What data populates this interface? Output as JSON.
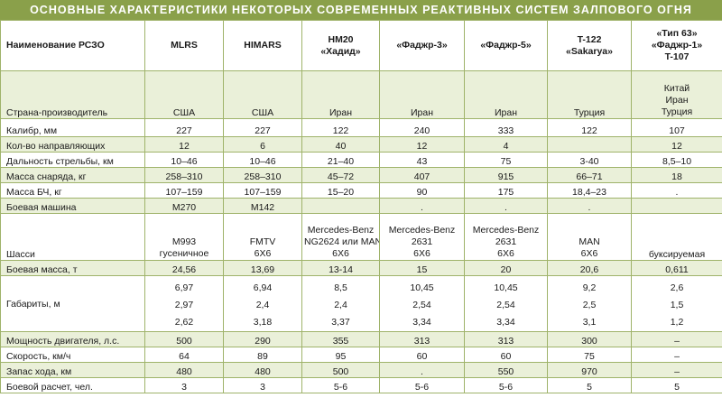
{
  "title": "ОСНОВНЫЕ ХАРАКТЕРИСТИКИ НЕКОТОРЫХ СОВРЕМЕННЫХ РЕАКТИВНЫХ СИСТЕМ ЗАЛПОВОГО ОГНЯ",
  "header": {
    "name_col": "Наименование РСЗО",
    "systems": [
      [
        "MLRS"
      ],
      [
        "HIMARS"
      ],
      [
        "HM20",
        "«Хадид»"
      ],
      [
        "«Фаджр-3»"
      ],
      [
        "«Фаджр-5»"
      ],
      [
        "T-122",
        "«Sakarya»"
      ],
      [
        "«Тип 63»",
        "«Фаджр-1»",
        "T-107"
      ]
    ]
  },
  "rows": [
    {
      "label": "Страна-производитель",
      "cells": [
        [
          "США"
        ],
        [
          "США"
        ],
        [
          "Иран"
        ],
        [
          "Иран"
        ],
        [
          "Иран"
        ],
        [
          "Турция"
        ],
        [
          "Китай",
          "Иран",
          "Турция"
        ]
      ]
    },
    {
      "label": "Калибр, мм",
      "cells": [
        [
          "227"
        ],
        [
          "227"
        ],
        [
          "122"
        ],
        [
          "240"
        ],
        [
          "333"
        ],
        [
          "122"
        ],
        [
          "107"
        ]
      ]
    },
    {
      "label": "Кол-во направляющих",
      "cells": [
        [
          "12"
        ],
        [
          "6"
        ],
        [
          "40"
        ],
        [
          "12"
        ],
        [
          "4"
        ],
        [
          ""
        ],
        [
          "12"
        ]
      ]
    },
    {
      "label": "Дальность стрельбы, км",
      "cells": [
        [
          "10–46"
        ],
        [
          "10–46"
        ],
        [
          "21–40"
        ],
        [
          "43"
        ],
        [
          "75"
        ],
        [
          "3-40"
        ],
        [
          "8,5–10"
        ]
      ]
    },
    {
      "label": "Масса снаряда, кг",
      "cells": [
        [
          "258–310"
        ],
        [
          "258–310"
        ],
        [
          "45–72"
        ],
        [
          "407"
        ],
        [
          "915"
        ],
        [
          "66–71"
        ],
        [
          "18"
        ]
      ]
    },
    {
      "label": "Масса БЧ, кг",
      "cells": [
        [
          "107–159"
        ],
        [
          "107–159"
        ],
        [
          "15–20"
        ],
        [
          "90"
        ],
        [
          "175"
        ],
        [
          "18,4–23"
        ],
        [
          "."
        ]
      ]
    },
    {
      "label": "Боевая машина",
      "cells": [
        [
          "M270"
        ],
        [
          "M142"
        ],
        [
          ""
        ],
        [
          "."
        ],
        [
          "."
        ],
        [
          "."
        ],
        [
          ""
        ]
      ]
    },
    {
      "label": "Шасси",
      "cells": [
        [
          "M993",
          "гусеничное"
        ],
        [
          "FMTV",
          "6X6"
        ],
        [
          "Mercedes-Benz",
          "NG2624 или MAN",
          "6X6"
        ],
        [
          "Mercedes-Benz",
          "2631",
          "6X6"
        ],
        [
          "Mercedes-Benz",
          "2631",
          "6X6"
        ],
        [
          "MAN",
          "6X6"
        ],
        [
          "буксируемая"
        ]
      ]
    },
    {
      "label": "Боевая масса, т",
      "cells": [
        [
          "24,56"
        ],
        [
          "13,69"
        ],
        [
          "13-14"
        ],
        [
          "15"
        ],
        [
          "20"
        ],
        [
          "20,6"
        ],
        [
          "0,611"
        ]
      ]
    },
    {
      "label": "Габариты, м",
      "cells": [
        [
          "6,97",
          "2,97",
          "2,62"
        ],
        [
          "6,94",
          "2,4",
          "3,18"
        ],
        [
          "8,5",
          "2,4",
          "3,37"
        ],
        [
          "10,45",
          "2,54",
          "3,34"
        ],
        [
          "10,45",
          "2,54",
          "3,34"
        ],
        [
          "9,2",
          "2,5",
          "3,1"
        ],
        [
          "2,6",
          "1,5",
          "1,2"
        ]
      ]
    },
    {
      "label": "Мощность двигателя, л.с.",
      "cells": [
        [
          "500"
        ],
        [
          "290"
        ],
        [
          "355"
        ],
        [
          "313"
        ],
        [
          "313"
        ],
        [
          "300"
        ],
        [
          "–"
        ]
      ]
    },
    {
      "label": "Скорость, км/ч",
      "cells": [
        [
          "64"
        ],
        [
          "89"
        ],
        [
          "95"
        ],
        [
          "60"
        ],
        [
          "60"
        ],
        [
          "75"
        ],
        [
          "–"
        ]
      ]
    },
    {
      "label": "Запас хода, км",
      "cells": [
        [
          "480"
        ],
        [
          "480"
        ],
        [
          "500"
        ],
        [
          "."
        ],
        [
          "550"
        ],
        [
          "970"
        ],
        [
          "–"
        ]
      ]
    },
    {
      "label": "Боевой расчет, чел.",
      "cells": [
        [
          "3"
        ],
        [
          "3"
        ],
        [
          "5-6"
        ],
        [
          "5-6"
        ],
        [
          "5-6"
        ],
        [
          "5"
        ],
        [
          "5"
        ]
      ]
    }
  ]
}
